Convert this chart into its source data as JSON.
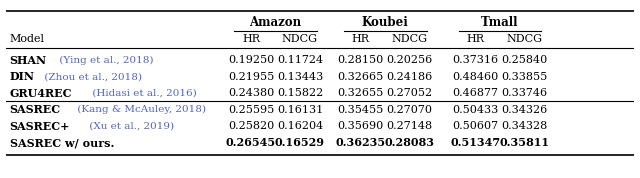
{
  "rows": [
    {
      "model_bold": "SHAN",
      "model_normal": " (Ying et al., 2018)",
      "values": [
        "0.19250",
        "0.11724",
        "0.28150",
        "0.20256",
        "0.37316",
        "0.25840"
      ],
      "bold_values": [
        false,
        false,
        false,
        false,
        false,
        false
      ],
      "group": 1
    },
    {
      "model_bold": "DIN",
      "model_normal": " (Zhou et al., 2018)",
      "values": [
        "0.21955",
        "0.13443",
        "0.32665",
        "0.24186",
        "0.48460",
        "0.33855"
      ],
      "bold_values": [
        false,
        false,
        false,
        false,
        false,
        false
      ],
      "group": 1
    },
    {
      "model_bold": "GRU4REC",
      "model_normal": " (Hidasi et al., 2016)",
      "values": [
        "0.24380",
        "0.15822",
        "0.32655",
        "0.27052",
        "0.46877",
        "0.33746"
      ],
      "bold_values": [
        false,
        false,
        false,
        false,
        false,
        false
      ],
      "group": 1
    },
    {
      "model_bold": "SASREC",
      "model_normal": " (Kang & McAuley, 2018)",
      "values": [
        "0.25595",
        "0.16131",
        "0.35455",
        "0.27070",
        "0.50433",
        "0.34326"
      ],
      "bold_values": [
        false,
        false,
        false,
        false,
        false,
        false
      ],
      "group": 2
    },
    {
      "model_bold": "SASREC+",
      "model_normal": " (Xu et al., 2019)",
      "values": [
        "0.25820",
        "0.16204",
        "0.35690",
        "0.27148",
        "0.50607",
        "0.34328"
      ],
      "bold_values": [
        false,
        false,
        false,
        false,
        false,
        false
      ],
      "group": 2
    },
    {
      "model_bold": "SASREC w/ ours.",
      "model_normal": "",
      "values": [
        "0.26545",
        "0.16529",
        "0.36235",
        "0.28083",
        "0.51347",
        "0.35811"
      ],
      "bold_values": [
        true,
        true,
        true,
        true,
        true,
        true
      ],
      "group": 2
    }
  ],
  "group_header_labels": [
    "Amazon",
    "Koubei",
    "Tmall"
  ],
  "background_color": "#ffffff",
  "text_color": "#000000",
  "cite_color": "#5566bb",
  "line_color": "#000000",
  "font_size": 8.0,
  "group_font_size": 8.5
}
